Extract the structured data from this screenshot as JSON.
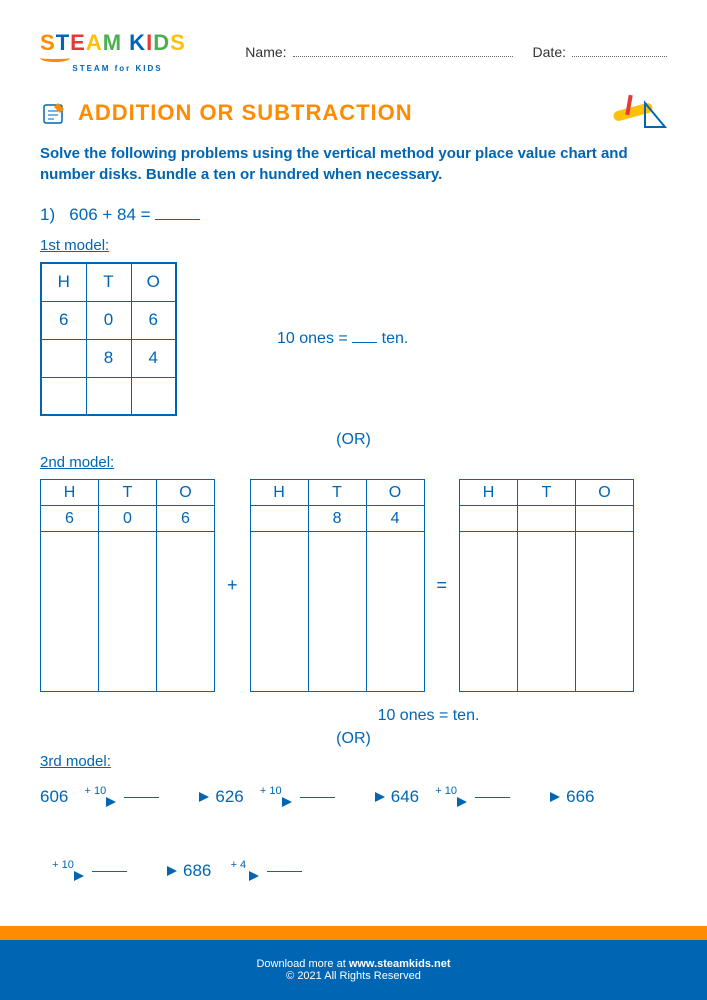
{
  "header": {
    "logo_text": "STEAM KIDS",
    "logo_colors": [
      "#ff8c00",
      "#0066b3",
      "#e53935",
      "#ffc107",
      "#4caf50",
      "#ff8c00",
      "#0066b3",
      "#e53935",
      "#4caf50",
      "#ffc107"
    ],
    "logo_tag": "STEAM for KIDS",
    "name_label": "Name:",
    "date_label": "Date:"
  },
  "title": "ADDITION OR SUBTRACTION",
  "instructions": "Solve the following problems using the vertical method your place value chart and number disks. Bundle a ten or hundred when necessary.",
  "problem": {
    "number": "1)",
    "expression": "606 + 84 ="
  },
  "model1": {
    "label": "1st model:",
    "table": {
      "columns": [
        "H",
        "T",
        "O"
      ],
      "rows": [
        [
          "6",
          "0",
          "6"
        ],
        [
          "",
          "8",
          "4"
        ],
        [
          "",
          "",
          ""
        ]
      ]
    },
    "hint_prefix": "10 ones = ",
    "hint_suffix": " ten."
  },
  "or_label": "(OR)",
  "model2": {
    "label": "2nd model:",
    "tables": [
      {
        "columns": [
          "H",
          "T",
          "O"
        ],
        "values": [
          "6",
          "0",
          "6"
        ]
      },
      {
        "columns": [
          "H",
          "T",
          "O"
        ],
        "values": [
          "",
          "8",
          "4"
        ]
      },
      {
        "columns": [
          "H",
          "T",
          "O"
        ],
        "values": [
          "",
          "",
          ""
        ]
      }
    ],
    "op1": "+",
    "op2": "=",
    "hint_prefix": "10 ones = ",
    "hint_suffix": " ten."
  },
  "model3": {
    "label": "3rd model:",
    "steps": [
      {
        "start": "606",
        "inc": "+ 10",
        "blank": true
      },
      {
        "start": "",
        "inc": "",
        "to": "626"
      },
      {
        "start": "",
        "inc": "+ 10",
        "blank": true
      },
      {
        "start": "",
        "inc": "",
        "to": "646"
      },
      {
        "start": "",
        "inc": "+ 10",
        "blank": true
      },
      {
        "start": "",
        "inc": "",
        "to": "666"
      }
    ],
    "line2": [
      {
        "inc": "+ 10",
        "blank": true
      },
      {
        "to": "686"
      },
      {
        "inc": "+ 4",
        "blank": true
      }
    ]
  },
  "footer": {
    "line1_pre": "Download more at ",
    "line1_link": "www.steamkids.net",
    "line2": "© 2021 All Rights Reserved"
  },
  "colors": {
    "primary": "#0066b3",
    "accent": "#ff8c00"
  }
}
